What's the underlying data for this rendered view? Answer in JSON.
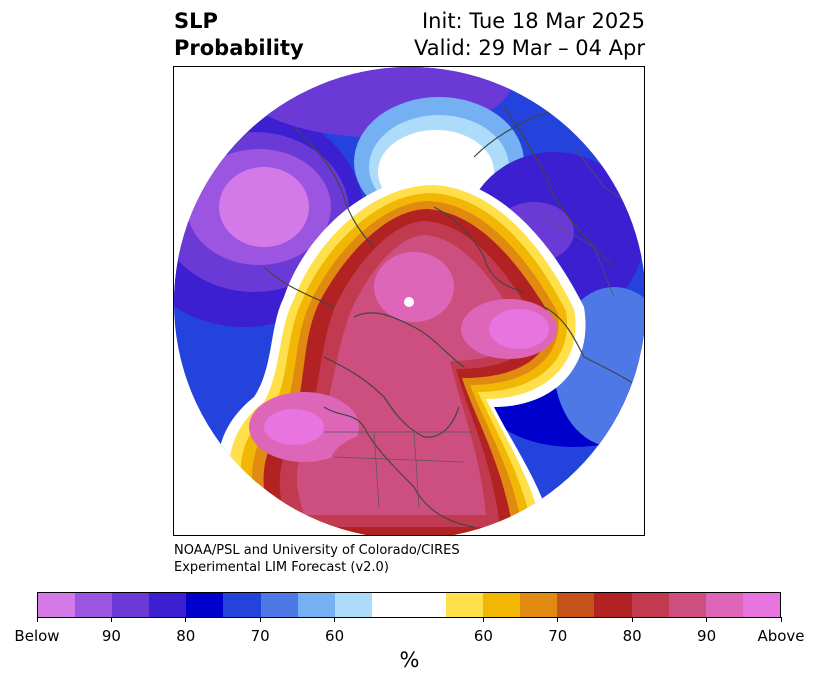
{
  "title": {
    "left_line1": "SLP",
    "left_line2": "Probability",
    "right_line1": "Init: Tue 18 Mar 2025",
    "right_line2": "Valid: 29 Mar – 04 Apr"
  },
  "credit": {
    "line1": "NOAA/PSL and University of Colorado/CIRES",
    "line2": "Experimental LIM Forecast (v2.0)"
  },
  "map": {
    "projection": "north-polar-stereographic",
    "field": "SLP probability",
    "colors": {
      "below_strong": "#d37ae8",
      "below_90": "#9b55e0",
      "below_85": "#6b3ad6",
      "below_80": "#3c1fd0",
      "below_75": "#0000cc",
      "below_70": "#2442dc",
      "below_65": "#4d78e6",
      "below_60": "#74b0f2",
      "below_55": "#acdcfa",
      "neutral": "#ffffff",
      "above_55": "#ffe04a",
      "above_60": "#f2b705",
      "above_65": "#e08a12",
      "above_70": "#c55218",
      "above_75": "#b22222",
      "above_80": "#c23a4f",
      "above_85": "#cc4f80",
      "above_90": "#dd66b8",
      "above_strong": "#e874e0"
    }
  },
  "colorbar": {
    "colors": [
      "#d37ae8",
      "#9b55e0",
      "#6b3ad6",
      "#3c1fd0",
      "#0000cc",
      "#2442dc",
      "#4d78e6",
      "#74b0f2",
      "#acdcfa",
      "#ffffff",
      "#ffe04a",
      "#f2b705",
      "#e08a12",
      "#c55218",
      "#b22222",
      "#c23a4f",
      "#cc4f80",
      "#dd66b8",
      "#e874e0"
    ],
    "tick_labels": [
      "Below",
      "90",
      "80",
      "70",
      "60",
      "60",
      "70",
      "80",
      "90",
      "Above"
    ],
    "unit_label": "%"
  }
}
